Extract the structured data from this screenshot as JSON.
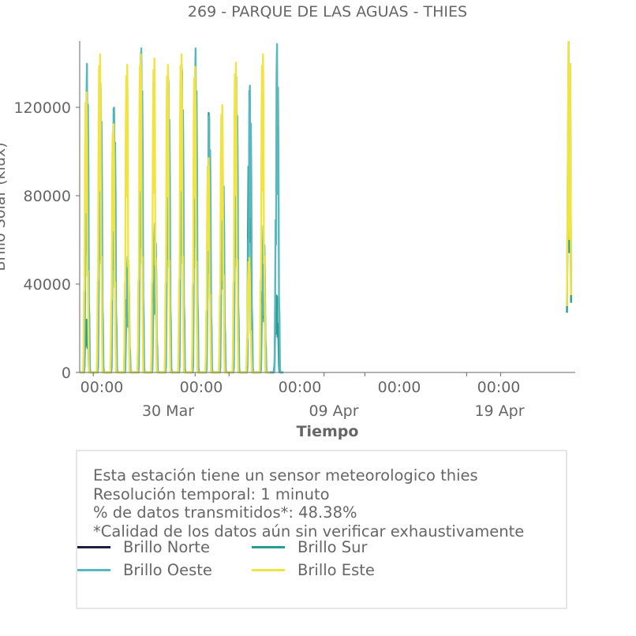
{
  "chart_data": {
    "type": "line",
    "title": "269 - PARQUE DE LAS AGUAS - THIES",
    "xlabel": "Tiempo",
    "ylabel": "Brillo Solar (klux)",
    "ylim": [
      0,
      150000
    ],
    "yticks": [
      0,
      40000,
      80000,
      120000
    ],
    "ytick_labels": [
      "0",
      "40000",
      "80000",
      "120000"
    ],
    "xlim": [
      "2024-03-22T00:00",
      "2024-04-27T12:00"
    ],
    "xticks_major": [
      "2024-03-23T00:00",
      "2024-03-30T12:00",
      "2024-04-02T00:00",
      "2024-04-09T00:00",
      "2024-04-12T00:00",
      "2024-04-19T12:00",
      "2024-04-22T00:00"
    ],
    "xtick_labels_primary": [
      "00:00",
      "00:00",
      "00:00",
      "00:00",
      "00:00"
    ],
    "xtick_labels_secondary": [
      "30 Mar",
      "09 Apr",
      "19 Apr"
    ],
    "grid": false,
    "legend_position": "bottom",
    "series": [
      {
        "name": "Brillo Norte",
        "color": "#1b1f3b",
        "daily_peaks": []
      },
      {
        "name": "Brillo Sur",
        "color": "#2a9d8f",
        "daily_peaks": [
          24000,
          132000,
          120000,
          45000,
          145000,
          58000,
          135000,
          140000,
          138000,
          118000,
          90000,
          122000,
          128000,
          50000,
          35000
        ]
      },
      {
        "name": "Brillo Oeste",
        "color": "#57b8c0",
        "daily_peaks": [
          141000,
          132000,
          121000,
          53000,
          148000,
          68000,
          133000,
          138000,
          148000,
          117000,
          98000,
          135000,
          131000,
          67000,
          150000
        ]
      },
      {
        "name": "Brillo Este",
        "color": "#f1e440",
        "daily_peaks": [
          132000,
          150000,
          117000,
          145000,
          150000,
          148000,
          145000,
          150000,
          144000,
          101000,
          126000,
          146000,
          54000,
          150000
        ]
      }
    ]
  },
  "info": {
    "line1": "Esta estación tiene un sensor meteorologico thies",
    "line2": "Resolución temporal: 1 minuto",
    "line3": "% de datos transmitidos*: 48.38%",
    "line4": "*Calidad de los datos aún sin verificar exhaustivamente"
  },
  "legend": [
    {
      "label": "Brillo Norte",
      "color": "#1b1f3b"
    },
    {
      "label": "Brillo Sur",
      "color": "#2a9d8f"
    },
    {
      "label": "Brillo Oeste",
      "color": "#57b8c0"
    },
    {
      "label": "Brillo Este",
      "color": "#f1e440"
    }
  ]
}
